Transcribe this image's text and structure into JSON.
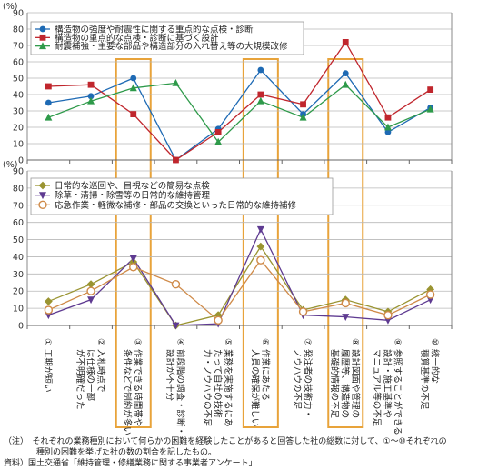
{
  "chart_data": [
    {
      "type": "line",
      "ylabel": "(%)",
      "ylim": [
        0,
        90
      ],
      "yticks": [
        0,
        10,
        20,
        30,
        40,
        50,
        60,
        70,
        80,
        90
      ],
      "categories": [
        "①",
        "②",
        "③",
        "④",
        "⑤",
        "⑥",
        "⑦",
        "⑧",
        "⑨",
        "⑩"
      ],
      "series": [
        {
          "name": "構造物の強度や耐震性に関する重点的な点検・診断",
          "color": "#1e6ab4",
          "marker": "circle",
          "values": [
            35,
            39,
            50,
            0,
            19,
            55,
            28,
            53,
            17,
            32
          ]
        },
        {
          "name": "構造物の重点的な点検・診断に基づく設計",
          "color": "#c0262d",
          "marker": "square",
          "values": [
            45,
            46,
            28,
            0,
            17,
            40,
            34,
            72,
            26,
            43
          ]
        },
        {
          "name": "耐震補強・主要な部品や構造部分の入れ替え等の大規模改修",
          "color": "#2e9a4a",
          "marker": "triangle",
          "values": [
            26,
            36,
            44,
            47,
            11,
            36,
            26,
            46,
            20,
            31
          ]
        }
      ]
    },
    {
      "type": "line",
      "ylabel": "(%)",
      "ylim": [
        0,
        90
      ],
      "yticks": [
        0,
        10,
        20,
        30,
        40,
        50,
        60,
        70,
        80,
        90
      ],
      "categories": [
        "①",
        "②",
        "③",
        "④",
        "⑤",
        "⑥",
        "⑦",
        "⑧",
        "⑨",
        "⑩"
      ],
      "series": [
        {
          "name": "日常的な巡回や、目視などの簡易な点検",
          "color": "#9a9431",
          "marker": "diamond",
          "values": [
            14,
            24,
            37,
            0,
            6,
            46,
            9,
            15,
            8,
            21
          ]
        },
        {
          "name": "除草・清掃・除雪等の日常的な維持管理",
          "color": "#5e3a91",
          "marker": "triangle-down",
          "values": [
            6,
            15,
            39,
            0,
            1,
            56,
            6,
            5,
            3,
            15
          ]
        },
        {
          "name": "応急作業・軽微な補修・部品の交換といった日常的な維持補修",
          "color": "#cf8a48",
          "marker": "circle-open",
          "values": [
            9,
            20,
            34,
            24,
            3,
            38,
            8,
            13,
            6,
            18
          ]
        }
      ]
    }
  ],
  "x_labels": [
    {
      "num": "①",
      "lines": [
        "工期が短い"
      ]
    },
    {
      "num": "②",
      "lines": [
        "入札時点で",
        "は仕様の一部",
        "が不明確だった"
      ]
    },
    {
      "num": "③",
      "lines": [
        "作業できる時間帯や",
        "条件などで制約が多い"
      ]
    },
    {
      "num": "④",
      "lines": [
        "前段階の調査・診断・",
        "設計が不十分"
      ]
    },
    {
      "num": "⑤",
      "lines": [
        "業務を実施するにあ",
        "たって自社の技術",
        "力・ノウハウの不足"
      ]
    },
    {
      "num": "⑥",
      "lines": [
        "作業にあたる",
        "人員の確保が難しい"
      ]
    },
    {
      "num": "⑦",
      "lines": [
        "発注者の技術力・",
        "ノウハウの不足"
      ]
    },
    {
      "num": "⑧",
      "lines": [
        "設計図面や管理の",
        "履歴等、構造物の",
        "基礎的情報の不足"
      ]
    },
    {
      "num": "⑨",
      "lines": [
        "参照することができる",
        "設計・施工基準や",
        "マニュアル等の不足"
      ]
    },
    {
      "num": "⑩",
      "lines": [
        "統一的な",
        "積算基準の不足"
      ]
    }
  ],
  "highlight_color": "#e8a33a",
  "highlighted": [
    "③",
    "⑥",
    "⑧"
  ],
  "notes": {
    "line1": "（注）　それぞれの業務種別において何らかの困難を経験したことがあると回答した社の総数に対して、①～⑩それぞれの",
    "line2": "　　　　種別の困難を挙げた社の数の割合を記したもの。",
    "source": "資料）国土交通省「維持管理・修繕業務に関する事業者アンケート」"
  }
}
